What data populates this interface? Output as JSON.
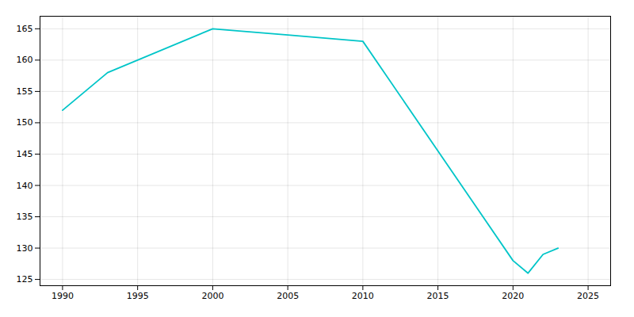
{
  "chart_data": {
    "type": "line",
    "x": [
      1990,
      1993,
      2000,
      2005,
      2010,
      2020,
      2021,
      2022,
      2023
    ],
    "values": [
      152,
      158,
      165,
      164,
      163,
      128,
      126,
      129,
      130
    ],
    "color": "#00c5c8",
    "xlim": [
      1988.5,
      2026.5
    ],
    "ylim": [
      124,
      167
    ],
    "xticks": [
      1990,
      1995,
      2000,
      2005,
      2010,
      2015,
      2020,
      2025
    ],
    "yticks": [
      125,
      130,
      135,
      140,
      145,
      150,
      155,
      160,
      165
    ],
    "grid": true
  }
}
